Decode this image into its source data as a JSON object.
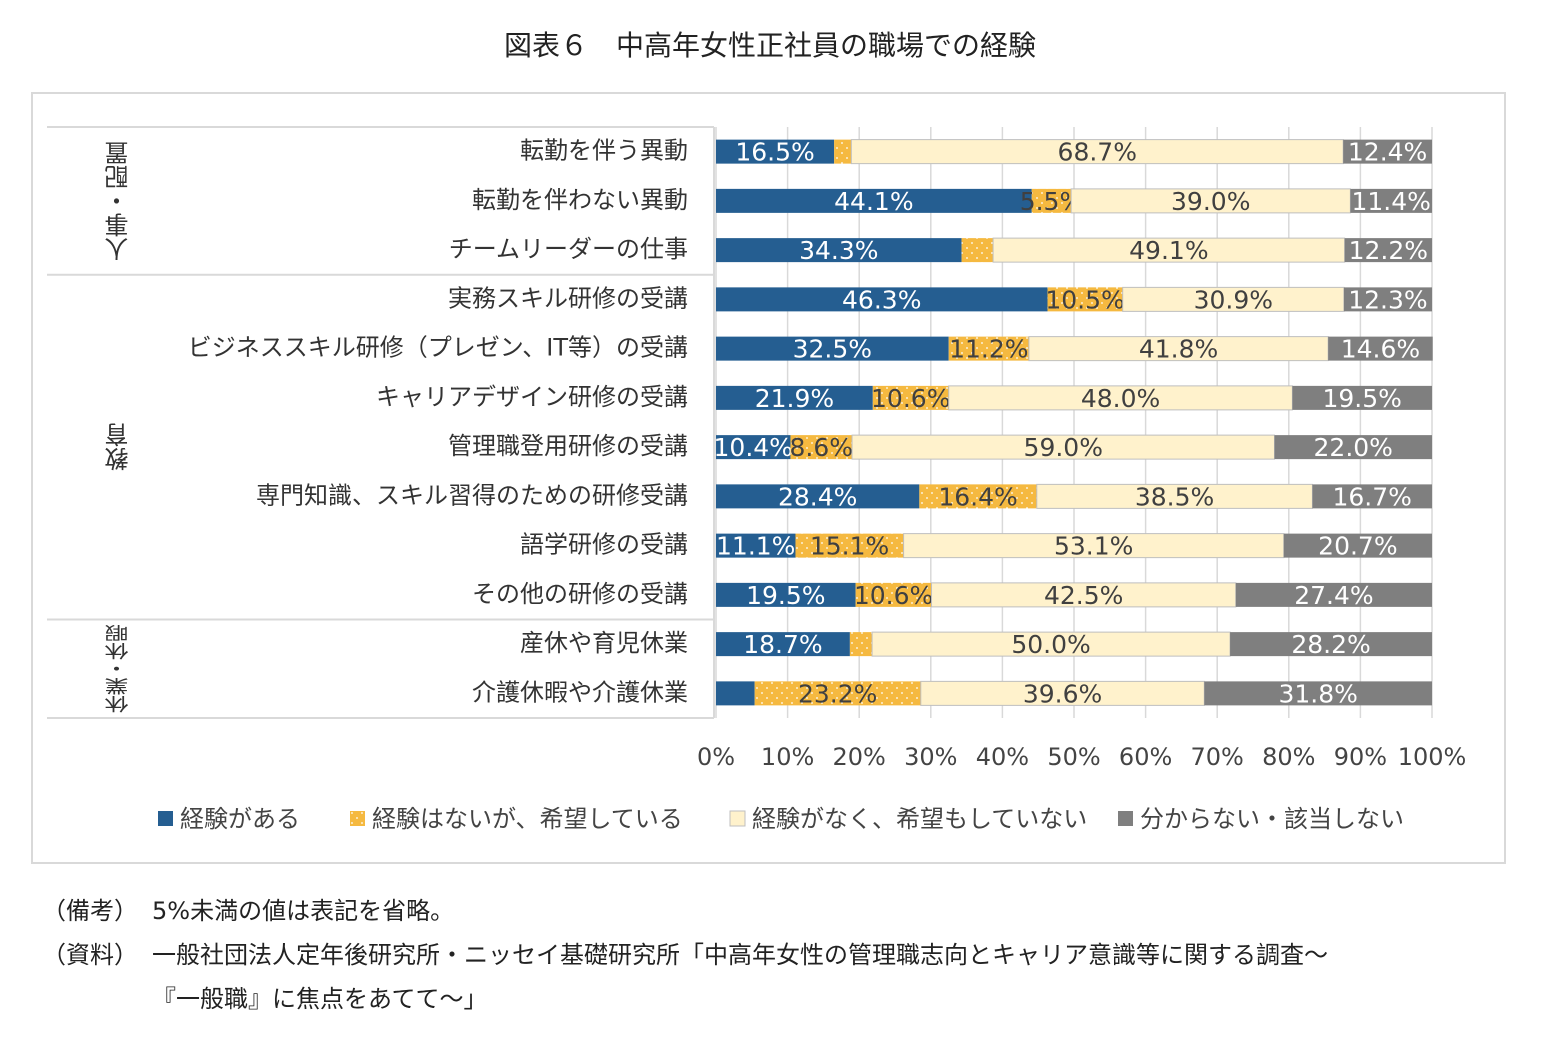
{
  "chart_data": {
    "type": "stacked-bar-horizontal",
    "title": "図表６　中高年女性正社員の職場での経験",
    "groups": [
      {
        "name": "人事・配置",
        "categories": [
          "転勤を伴う異動",
          "転勤を伴わない異動",
          "チームリーダーの仕事"
        ]
      },
      {
        "name": "教育",
        "categories": [
          "実務スキル研修の受講",
          "ビジネススキル研修（プレゼン、IT等）の受講",
          "キャリアデザイン研修の受講",
          "管理職登用研修の受講",
          "専門知識、スキル習得のための研修受講",
          "語学研修の受講",
          "その他の研修の受講"
        ]
      },
      {
        "name": "休業・休暇",
        "categories": [
          "産休や育児休業",
          "介護休暇や介護休業"
        ]
      }
    ],
    "series": [
      {
        "name": "経験がある",
        "color": "#255e91",
        "label_color": "#ffffff",
        "values": [
          16.5,
          44.1,
          34.3,
          46.3,
          32.5,
          21.9,
          10.4,
          28.4,
          11.1,
          19.5,
          18.7,
          5.4
        ],
        "value_labels": [
          "16.5%",
          "44.1%",
          "34.3%",
          "46.3%",
          "32.5%",
          "21.9%",
          "10.4%",
          "28.4%",
          "11.1%",
          "19.5%",
          "18.7%",
          null
        ]
      },
      {
        "name": "経験はないが、希望している",
        "color": "#f5b940",
        "label_color": "#404040",
        "pattern": "dots",
        "values": [
          2.4,
          5.5,
          4.4,
          10.5,
          11.2,
          10.6,
          8.6,
          16.4,
          15.1,
          10.6,
          3.1,
          23.2
        ],
        "value_labels": [
          null,
          "5.5%",
          null,
          "10.5%",
          "11.2%",
          "10.6%",
          "8.6%",
          "16.4%",
          "15.1%",
          "10.6%",
          null,
          "23.2%"
        ]
      },
      {
        "name": "経験がなく、希望もしていない",
        "color": "#fff2cc",
        "label_color": "#404040",
        "values": [
          68.7,
          39.0,
          49.1,
          30.9,
          41.8,
          48.0,
          59.0,
          38.5,
          53.1,
          42.5,
          50.0,
          39.6
        ],
        "value_labels": [
          "68.7%",
          "39.0%",
          "49.1%",
          "30.9%",
          "41.8%",
          "48.0%",
          "59.0%",
          "38.5%",
          "53.1%",
          "42.5%",
          "50.0%",
          "39.6%"
        ]
      },
      {
        "name": "分からない・該当しない",
        "color": "#7f7f7f",
        "label_color": "#ffffff",
        "values": [
          12.4,
          11.4,
          12.2,
          12.3,
          14.6,
          19.5,
          22.0,
          16.7,
          20.7,
          27.4,
          28.2,
          31.8
        ],
        "value_labels": [
          "12.4%",
          "11.4%",
          "12.2%",
          "12.3%",
          "14.6%",
          "19.5%",
          "22.0%",
          "16.7%",
          "20.7%",
          "27.4%",
          "28.2%",
          "31.8%"
        ]
      }
    ],
    "xlim": [
      0,
      100
    ],
    "xticks": [
      {
        "value": 0,
        "label": "0%"
      },
      {
        "value": 10,
        "label": "10%"
      },
      {
        "value": 20,
        "label": "20%"
      },
      {
        "value": 30,
        "label": "30%"
      },
      {
        "value": 40,
        "label": "40%"
      },
      {
        "value": 50,
        "label": "50%"
      },
      {
        "value": 60,
        "label": "60%"
      },
      {
        "value": 70,
        "label": "70%"
      },
      {
        "value": 80,
        "label": "80%"
      },
      {
        "value": 90,
        "label": "90%"
      },
      {
        "value": 100,
        "label": "100%"
      }
    ],
    "grid": true,
    "legend": "bottom"
  },
  "notes": [
    {
      "label": "（備考）",
      "lines": [
        "5%未満の値は表記を省略。"
      ]
    },
    {
      "label": "（資料）",
      "lines": [
        "一般社団法人定年後研究所・ニッセイ基礎研究所「中高年女性の管理職志向とキャリア意識等に関する調査～",
        "『一般職』に焦点をあてて～」"
      ]
    }
  ]
}
